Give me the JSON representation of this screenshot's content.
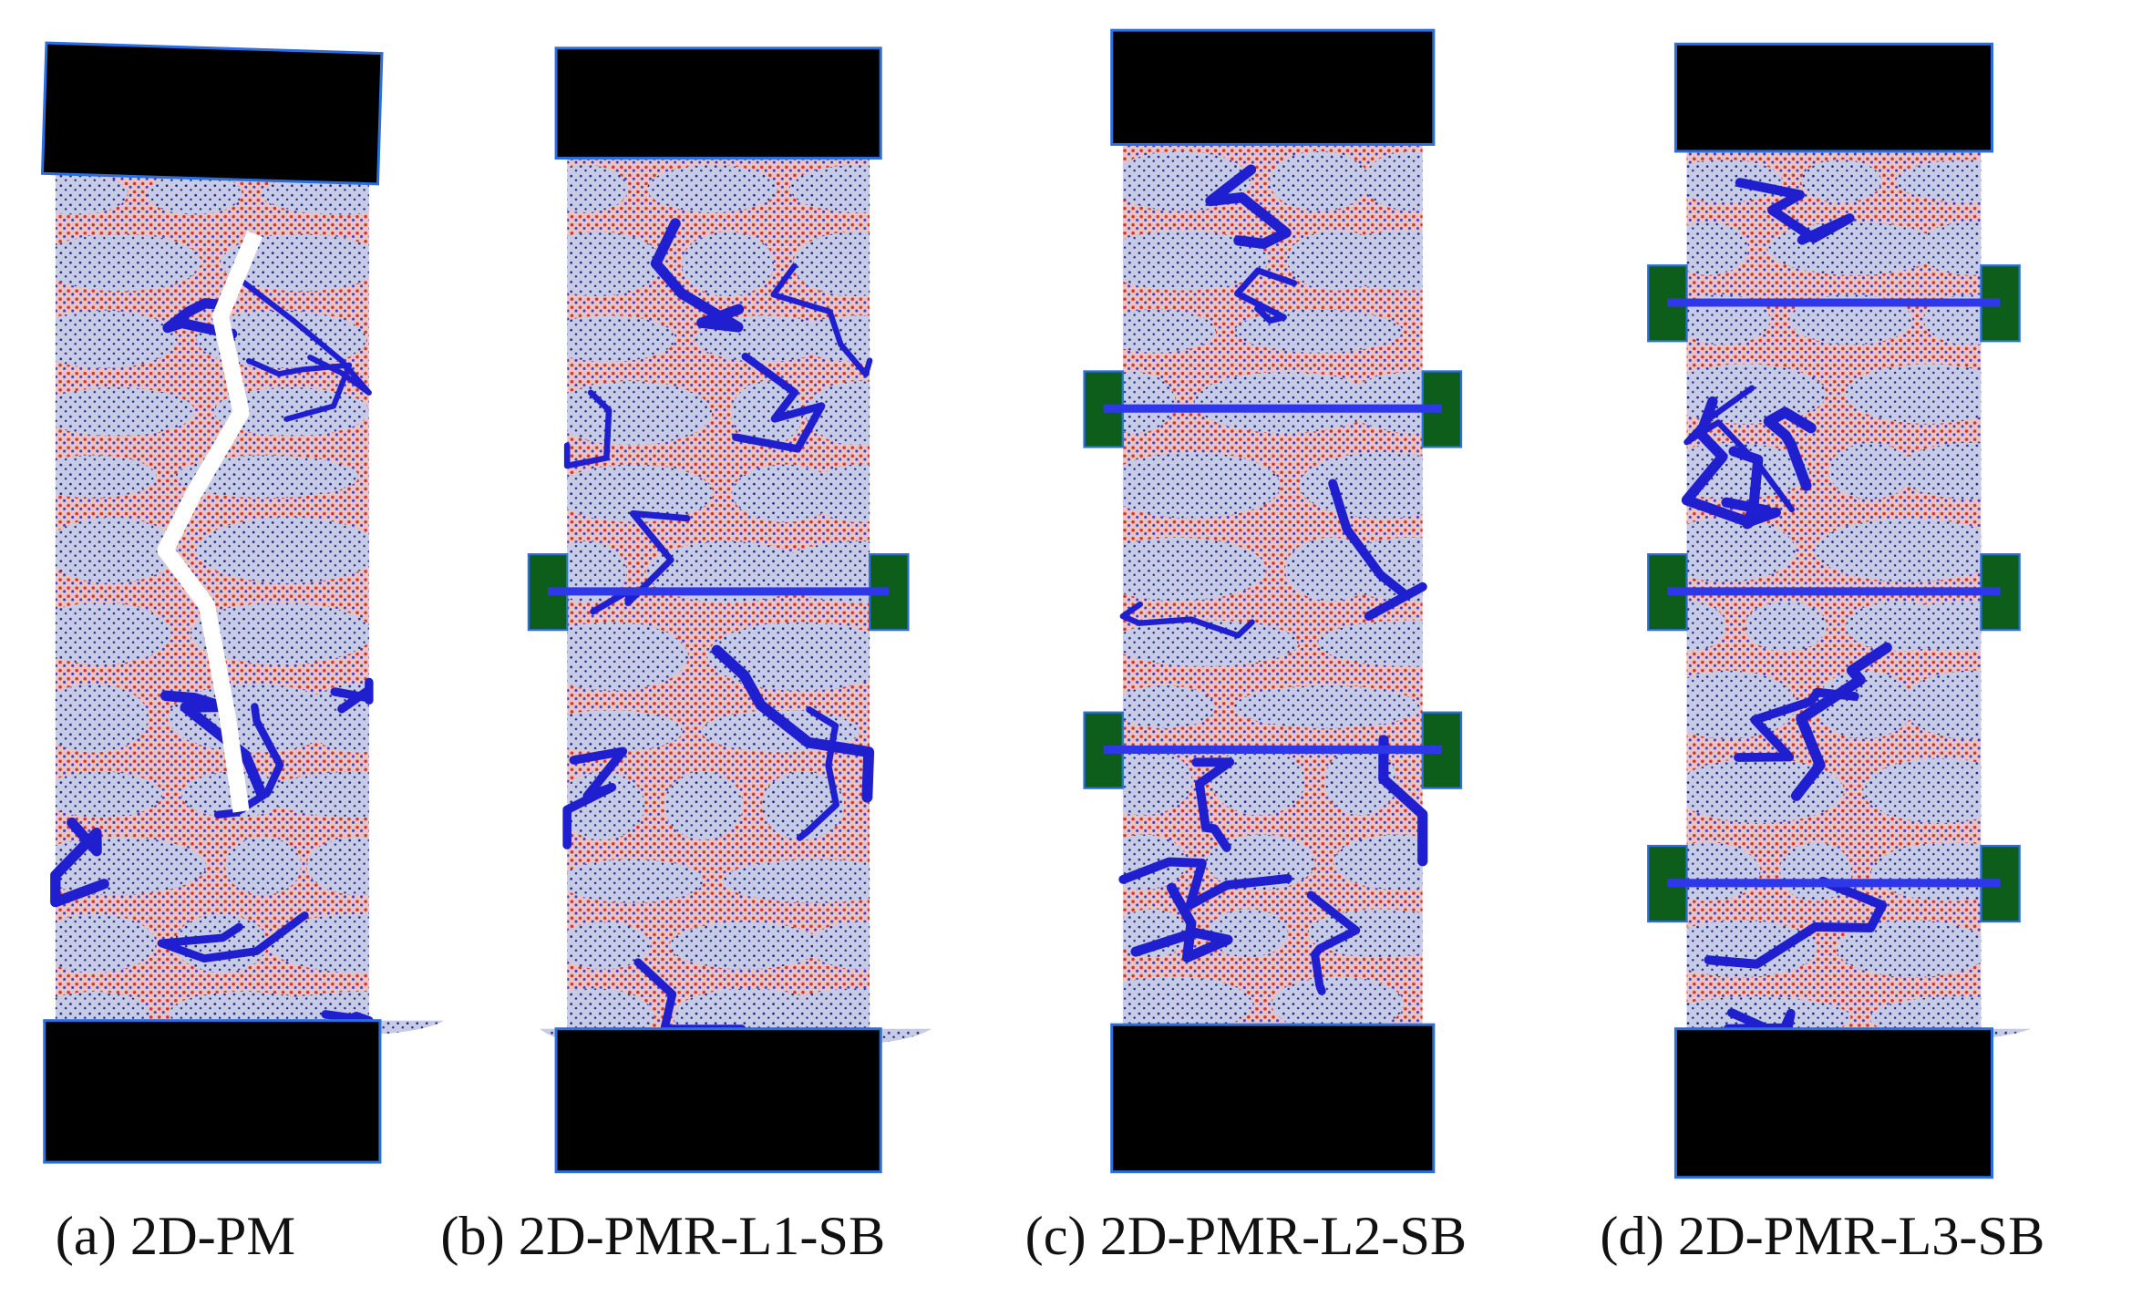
{
  "panels": [
    {
      "caption": "(a) 2D-PM"
    },
    {
      "caption": "(b) 2D-PMR-L1-SB"
    },
    {
      "caption": "(c) 2D-PMR-L2-SB"
    },
    {
      "caption": "(d) 2D-PMR-L3-SB"
    }
  ]
}
